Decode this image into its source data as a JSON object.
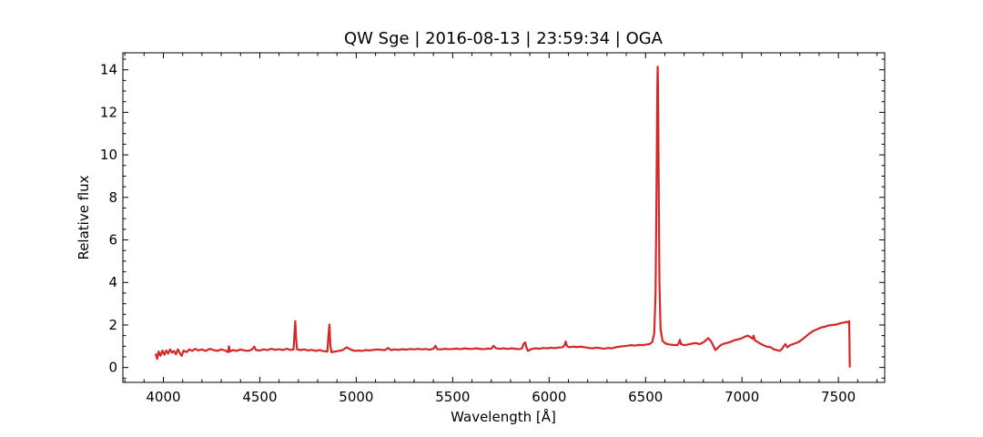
{
  "chart_data": {
    "type": "line",
    "title": "QW Sge | 2016-08-13 | 23:59:34 | OGA",
    "xlabel": "Wavelength [Å]",
    "ylabel": "Relative flux",
    "xlim": [
      3790,
      7740
    ],
    "ylim": [
      -0.7,
      14.8
    ],
    "xticks": [
      4000,
      4500,
      5000,
      5500,
      6000,
      6500,
      7000,
      7500
    ],
    "yticks": [
      0,
      2,
      4,
      6,
      8,
      10,
      12,
      14
    ],
    "grid": false,
    "legend": "none",
    "series": [
      {
        "color": "#d62728",
        "points": [
          [
            3960,
            0.65
          ],
          [
            3968,
            0.4
          ],
          [
            3975,
            0.75
          ],
          [
            3985,
            0.55
          ],
          [
            3995,
            0.8
          ],
          [
            4005,
            0.6
          ],
          [
            4015,
            0.8
          ],
          [
            4025,
            0.65
          ],
          [
            4035,
            0.85
          ],
          [
            4045,
            0.7
          ],
          [
            4055,
            0.78
          ],
          [
            4065,
            0.62
          ],
          [
            4075,
            0.85
          ],
          [
            4085,
            0.68
          ],
          [
            4095,
            0.55
          ],
          [
            4105,
            0.8
          ],
          [
            4120,
            0.72
          ],
          [
            4135,
            0.85
          ],
          [
            4150,
            0.78
          ],
          [
            4165,
            0.88
          ],
          [
            4180,
            0.8
          ],
          [
            4200,
            0.85
          ],
          [
            4220,
            0.78
          ],
          [
            4240,
            0.88
          ],
          [
            4260,
            0.82
          ],
          [
            4280,
            0.78
          ],
          [
            4300,
            0.85
          ],
          [
            4320,
            0.8
          ],
          [
            4335,
            0.72
          ],
          [
            4340,
            1.0
          ],
          [
            4345,
            0.75
          ],
          [
            4360,
            0.82
          ],
          [
            4380,
            0.78
          ],
          [
            4400,
            0.85
          ],
          [
            4420,
            0.8
          ],
          [
            4440,
            0.78
          ],
          [
            4460,
            0.85
          ],
          [
            4471,
            0.98
          ],
          [
            4480,
            0.82
          ],
          [
            4500,
            0.8
          ],
          [
            4520,
            0.85
          ],
          [
            4540,
            0.82
          ],
          [
            4560,
            0.88
          ],
          [
            4580,
            0.83
          ],
          [
            4600,
            0.86
          ],
          [
            4620,
            0.82
          ],
          [
            4640,
            0.88
          ],
          [
            4660,
            0.82
          ],
          [
            4675,
            0.85
          ],
          [
            4680,
            1.6
          ],
          [
            4684,
            2.18
          ],
          [
            4688,
            1.4
          ],
          [
            4693,
            0.85
          ],
          [
            4710,
            0.82
          ],
          [
            4730,
            0.85
          ],
          [
            4750,
            0.8
          ],
          [
            4770,
            0.83
          ],
          [
            4790,
            0.78
          ],
          [
            4810,
            0.82
          ],
          [
            4830,
            0.77
          ],
          [
            4850,
            0.75
          ],
          [
            4856,
            1.5
          ],
          [
            4861,
            2.02
          ],
          [
            4866,
            1.0
          ],
          [
            4872,
            0.72
          ],
          [
            4890,
            0.75
          ],
          [
            4910,
            0.78
          ],
          [
            4930,
            0.82
          ],
          [
            4950,
            0.95
          ],
          [
            4970,
            0.85
          ],
          [
            4990,
            0.78
          ],
          [
            5010,
            0.8
          ],
          [
            5030,
            0.78
          ],
          [
            5050,
            0.82
          ],
          [
            5070,
            0.8
          ],
          [
            5090,
            0.83
          ],
          [
            5110,
            0.85
          ],
          [
            5130,
            0.83
          ],
          [
            5150,
            0.82
          ],
          [
            5165,
            0.92
          ],
          [
            5180,
            0.82
          ],
          [
            5200,
            0.85
          ],
          [
            5220,
            0.83
          ],
          [
            5240,
            0.86
          ],
          [
            5260,
            0.84
          ],
          [
            5280,
            0.87
          ],
          [
            5300,
            0.85
          ],
          [
            5320,
            0.88
          ],
          [
            5340,
            0.85
          ],
          [
            5360,
            0.87
          ],
          [
            5380,
            0.84
          ],
          [
            5400,
            0.88
          ],
          [
            5411,
            1.02
          ],
          [
            5420,
            0.86
          ],
          [
            5440,
            0.85
          ],
          [
            5460,
            0.88
          ],
          [
            5480,
            0.86
          ],
          [
            5500,
            0.87
          ],
          [
            5520,
            0.89
          ],
          [
            5540,
            0.86
          ],
          [
            5560,
            0.9
          ],
          [
            5580,
            0.88
          ],
          [
            5600,
            0.87
          ],
          [
            5620,
            0.9
          ],
          [
            5640,
            0.88
          ],
          [
            5660,
            0.86
          ],
          [
            5680,
            0.89
          ],
          [
            5700,
            0.88
          ],
          [
            5712,
            1.02
          ],
          [
            5725,
            0.9
          ],
          [
            5745,
            0.88
          ],
          [
            5765,
            0.9
          ],
          [
            5785,
            0.87
          ],
          [
            5805,
            0.9
          ],
          [
            5825,
            0.88
          ],
          [
            5845,
            0.86
          ],
          [
            5860,
            0.9
          ],
          [
            5867,
            1.1
          ],
          [
            5876,
            1.18
          ],
          [
            5882,
            0.95
          ],
          [
            5890,
            0.78
          ],
          [
            5898,
            0.82
          ],
          [
            5910,
            0.87
          ],
          [
            5930,
            0.9
          ],
          [
            5950,
            0.88
          ],
          [
            5970,
            0.92
          ],
          [
            5990,
            0.9
          ],
          [
            6010,
            0.93
          ],
          [
            6030,
            0.91
          ],
          [
            6050,
            0.94
          ],
          [
            6070,
            0.95
          ],
          [
            6080,
            1.05
          ],
          [
            6086,
            1.22
          ],
          [
            6093,
            1.0
          ],
          [
            6105,
            0.95
          ],
          [
            6125,
            0.98
          ],
          [
            6145,
            0.96
          ],
          [
            6165,
            0.98
          ],
          [
            6185,
            0.95
          ],
          [
            6205,
            0.92
          ],
          [
            6225,
            0.9
          ],
          [
            6245,
            0.93
          ],
          [
            6265,
            0.91
          ],
          [
            6285,
            0.88
          ],
          [
            6305,
            0.92
          ],
          [
            6325,
            0.9
          ],
          [
            6345,
            0.95
          ],
          [
            6365,
            0.98
          ],
          [
            6385,
            1.0
          ],
          [
            6405,
            1.02
          ],
          [
            6425,
            1.05
          ],
          [
            6445,
            1.03
          ],
          [
            6465,
            1.06
          ],
          [
            6485,
            1.05
          ],
          [
            6505,
            1.08
          ],
          [
            6520,
            1.1
          ],
          [
            6535,
            1.2
          ],
          [
            6545,
            1.6
          ],
          [
            6552,
            3.5
          ],
          [
            6557,
            8.5
          ],
          [
            6561,
            13.0
          ],
          [
            6563,
            14.15
          ],
          [
            6565,
            13.2
          ],
          [
            6568,
            9.0
          ],
          [
            6572,
            4.0
          ],
          [
            6578,
            1.8
          ],
          [
            6588,
            1.25
          ],
          [
            6605,
            1.12
          ],
          [
            6625,
            1.08
          ],
          [
            6645,
            1.06
          ],
          [
            6665,
            1.05
          ],
          [
            6672,
            1.15
          ],
          [
            6678,
            1.3
          ],
          [
            6684,
            1.1
          ],
          [
            6700,
            1.05
          ],
          [
            6720,
            1.08
          ],
          [
            6740,
            1.12
          ],
          [
            6760,
            1.15
          ],
          [
            6780,
            1.1
          ],
          [
            6800,
            1.18
          ],
          [
            6815,
            1.3
          ],
          [
            6825,
            1.38
          ],
          [
            6838,
            1.25
          ],
          [
            6850,
            1.05
          ],
          [
            6862,
            0.82
          ],
          [
            6872,
            0.9
          ],
          [
            6885,
            1.02
          ],
          [
            6900,
            1.1
          ],
          [
            6920,
            1.15
          ],
          [
            6940,
            1.2
          ],
          [
            6960,
            1.28
          ],
          [
            6980,
            1.32
          ],
          [
            7000,
            1.38
          ],
          [
            7015,
            1.45
          ],
          [
            7030,
            1.5
          ],
          [
            7045,
            1.42
          ],
          [
            7055,
            1.35
          ],
          [
            7060,
            1.5
          ],
          [
            7066,
            1.3
          ],
          [
            7072,
            1.25
          ],
          [
            7090,
            1.15
          ],
          [
            7110,
            1.05
          ],
          [
            7130,
            0.98
          ],
          [
            7150,
            0.95
          ],
          [
            7165,
            0.85
          ],
          [
            7180,
            0.82
          ],
          [
            7195,
            0.78
          ],
          [
            7208,
            0.88
          ],
          [
            7218,
            1.02
          ],
          [
            7225,
            1.1
          ],
          [
            7235,
            0.95
          ],
          [
            7250,
            1.05
          ],
          [
            7270,
            1.12
          ],
          [
            7290,
            1.18
          ],
          [
            7310,
            1.3
          ],
          [
            7330,
            1.45
          ],
          [
            7350,
            1.6
          ],
          [
            7370,
            1.72
          ],
          [
            7390,
            1.8
          ],
          [
            7410,
            1.88
          ],
          [
            7430,
            1.92
          ],
          [
            7450,
            1.98
          ],
          [
            7470,
            2.0
          ],
          [
            7490,
            2.02
          ],
          [
            7510,
            2.08
          ],
          [
            7530,
            2.12
          ],
          [
            7545,
            2.15
          ],
          [
            7552,
            2.1
          ],
          [
            7556,
            2.18
          ],
          [
            7559,
            0.0
          ]
        ]
      }
    ]
  }
}
